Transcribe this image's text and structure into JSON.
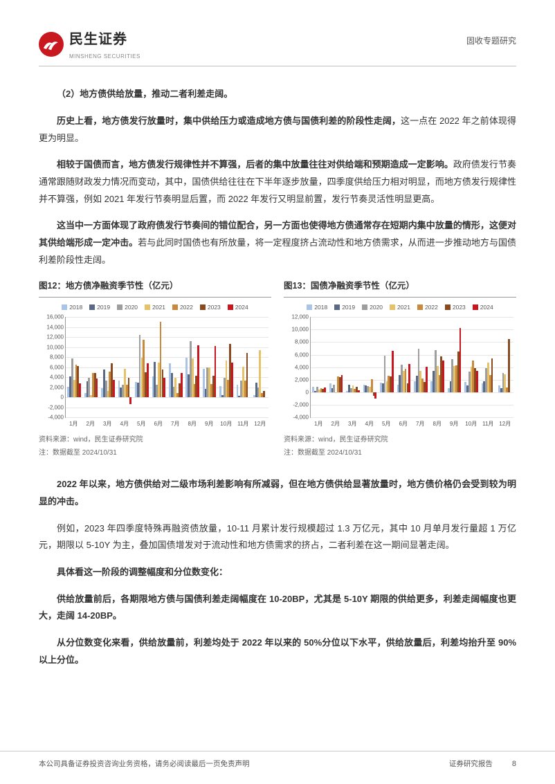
{
  "header": {
    "company_cn": "民生证券",
    "company_en": "MINSHENG SECURITIES",
    "doc_type": "固收专题研究"
  },
  "paragraphs": {
    "p1_bold": "（2）地方债供给放量，推动二者利差走阔。",
    "p2a_bold": "历史上看，地方债发行放量时，集中供给压力或造成地方债与国债利差的阶段性走阔，",
    "p2b": "这一点在 2022 年之前体现得更为明显。",
    "p3a_bold": "相较于国债而言，地方债发行规律性并不算强，后者的集中放量往往对供给端和预期造成一定影响。",
    "p3b": "政府债发行节奏通常跟随财政发力情况而变动，其中，国债供给往往在下半年逐步放量，四季度供给压力相对明显，而地方债发行规律性并不算强，例如 2021 年发行节奏明显后置，而 2022 年发行又明显前置，发行节奏灵活性明显更高。",
    "p4a_bold": "这当中一方面体现了政府债发行节奏间的错位配合，另一方面也使得地方债通常存在短期内集中放量的情形，这便对其供给端形成一定冲击。",
    "p4b": "若与此同时国债也有所放量，将一定程度挤占流动性和地方债需求，从而进一步推动地方与国债利差阶段性走阔。",
    "p5a_bold": "2022 年以来，地方债供给对二级市场利差影响有所减弱，但在地方债供给显著放量时，地方债价格仍会受到较为明显的冲击。",
    "p6": "例如，2023 年四季度特殊再融资债放量，10-11 月累计发行规模超过 1.3 万亿元，其中 10 月单月发行量超 1 万亿元，期限以 5-10Y 为主，叠加国债增发对于流动性和地方债需求的挤占，二者利差在这一期间显著走阔。",
    "p7_bold": "具体看这一阶段的调整幅度和分位数变化：",
    "p8a_bold": "供给放量前后，各期限地方债与国债利差走阔幅度在 10-20BP，尤其是 5-10Y 期限的供给更多，利差走阔幅度也更大，走阔 14-20BP。",
    "p9a_bold": "从分位数变化来看，供给放量前，利差均处于 2022 年以来的 50%分位以下水平，供给放量后，利差均抬升至 90%以上分位。"
  },
  "chart_shared": {
    "legend_years": [
      "2018",
      "2019",
      "2020",
      "2021",
      "2022",
      "2023",
      "2024"
    ],
    "series_colors": [
      "#a9c4e6",
      "#5a6a85",
      "#9e9e9e",
      "#e6c268",
      "#c98a3e",
      "#8a4a1f",
      "#c8171e"
    ],
    "months": [
      "1月",
      "2月",
      "3月",
      "4月",
      "5月",
      "6月",
      "7月",
      "8月",
      "9月",
      "10月",
      "11月",
      "12月"
    ],
    "source_line1": "资料来源：wind，民生证券研究院",
    "source_line2": "注：数据截至 2024/10/31",
    "grid_color": "#e6e6e6",
    "axis_color": "#999999",
    "bg": "#ffffff",
    "tick_font_size": 8
  },
  "chart12": {
    "title": "图12：地方债净融资季节性（亿元）",
    "ylim": [
      -4000,
      16000
    ],
    "yticks": [
      -4000,
      -2000,
      0,
      2000,
      4000,
      6000,
      8000,
      10000,
      12000,
      14000,
      16000
    ],
    "data": {
      "2018": [
        2100,
        900,
        1800,
        3300,
        3100,
        4200,
        6800,
        7900,
        5700,
        2200,
        2500,
        500
      ],
      "2019": [
        4100,
        3200,
        5500,
        1900,
        2900,
        7100,
        4900,
        4600,
        1700,
        500,
        300,
        2900
      ],
      "2020": [
        7800,
        3900,
        3300,
        2500,
        12500,
        2500,
        2100,
        11200,
        5900,
        3900,
        3300,
        1900
      ],
      "2021": [
        3500,
        500,
        1200,
        5700,
        7900,
        6900,
        3900,
        7800,
        5900,
        7300,
        6100,
        9400
      ],
      "2022": [
        6500,
        4900,
        5100,
        2500,
        11500,
        15100,
        900,
        2700,
        2600,
        3500,
        3300,
        800
      ],
      "2023": [
        6200,
        4900,
        6800,
        3900,
        5000,
        5500,
        2800,
        4300,
        4300,
        10700,
        8900,
        1200
      ],
      "2024": [
        2800,
        3800,
        3500,
        -1400,
        6800,
        3900,
        4900,
        10400,
        10200,
        6900,
        0,
        0
      ]
    }
  },
  "chart13": {
    "title": "图13：国债净融资季节性（亿元）",
    "ylim": [
      -4000,
      12000
    ],
    "yticks": [
      -4000,
      -2000,
      0,
      2000,
      4000,
      6000,
      8000,
      10000,
      12000
    ],
    "data": {
      "2018": [
        900,
        1400,
        200,
        1200,
        1500,
        1200,
        1700,
        1800,
        700,
        1600,
        1400,
        1100
      ],
      "2019": [
        200,
        600,
        1200,
        1100,
        1400,
        2700,
        2600,
        3400,
        1800,
        1100,
        1700,
        700
      ],
      "2020": [
        900,
        1200,
        700,
        1000,
        5800,
        4400,
        6900,
        6700,
        5300,
        3300,
        3900,
        3100
      ],
      "2021": [
        400,
        -50,
        1100,
        900,
        1700,
        3400,
        3400,
        4200,
        4200,
        4100,
        4700,
        2900
      ],
      "2022": [
        700,
        2500,
        500,
        2100,
        2600,
        3700,
        2200,
        2800,
        4300,
        5100,
        2800,
        800
      ],
      "2023": [
        500,
        2400,
        900,
        -600,
        2500,
        1400,
        1600,
        5700,
        6500,
        3900,
        5400,
        8500
      ],
      "2024": [
        800,
        2700,
        300,
        -1000,
        6600,
        4500,
        4100,
        5100,
        10200,
        3400,
        0,
        0
      ]
    }
  },
  "footer": {
    "left": "本公司具备证券投资咨询业务资格，请务必阅读最后一页免责声明",
    "right_label": "证券研究报告",
    "page_num": "8"
  }
}
